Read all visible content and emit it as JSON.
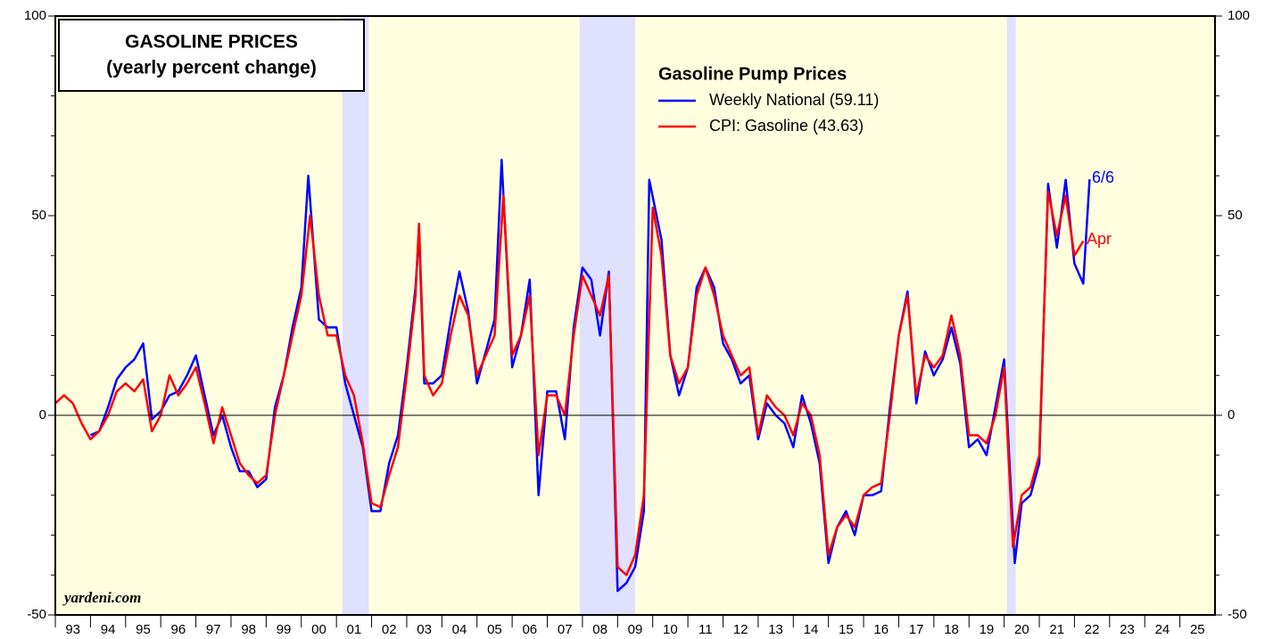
{
  "chart_data": {
    "type": "line",
    "title": [
      "GASOLINE PRICES",
      "(yearly percent change)"
    ],
    "legend_title": "Gasoline Pump Prices",
    "annotations": {
      "weekly_end": "6/6",
      "cpi_end": "Apr",
      "source": "yardeni.com"
    },
    "xlim": [
      1993,
      2026
    ],
    "xticks": [
      {
        "value": 1993,
        "label": "93"
      },
      {
        "value": 1994,
        "label": "94"
      },
      {
        "value": 1995,
        "label": "95"
      },
      {
        "value": 1996,
        "label": "96"
      },
      {
        "value": 1997,
        "label": "97"
      },
      {
        "value": 1998,
        "label": "98"
      },
      {
        "value": 1999,
        "label": "99"
      },
      {
        "value": 2000,
        "label": "00"
      },
      {
        "value": 2001,
        "label": "01"
      },
      {
        "value": 2002,
        "label": "02"
      },
      {
        "value": 2003,
        "label": "03"
      },
      {
        "value": 2004,
        "label": "04"
      },
      {
        "value": 2005,
        "label": "05"
      },
      {
        "value": 2006,
        "label": "06"
      },
      {
        "value": 2007,
        "label": "07"
      },
      {
        "value": 2008,
        "label": "08"
      },
      {
        "value": 2009,
        "label": "09"
      },
      {
        "value": 2010,
        "label": "10"
      },
      {
        "value": 2011,
        "label": "11"
      },
      {
        "value": 2012,
        "label": "12"
      },
      {
        "value": 2013,
        "label": "13"
      },
      {
        "value": 2014,
        "label": "14"
      },
      {
        "value": 2015,
        "label": "15"
      },
      {
        "value": 2016,
        "label": "16"
      },
      {
        "value": 2017,
        "label": "17"
      },
      {
        "value": 2018,
        "label": "18"
      },
      {
        "value": 2019,
        "label": "19"
      },
      {
        "value": 2020,
        "label": "20"
      },
      {
        "value": 2021,
        "label": "21"
      },
      {
        "value": 2022,
        "label": "22"
      },
      {
        "value": 2023,
        "label": "23"
      },
      {
        "value": 2024,
        "label": "24"
      },
      {
        "value": 2025,
        "label": "25"
      }
    ],
    "ylim": [
      -50,
      100
    ],
    "yticks": [
      -50,
      0,
      50,
      100
    ],
    "minor_yticks": [
      -40,
      -30,
      -20,
      -10,
      10,
      20,
      30,
      40,
      60,
      70,
      80,
      90
    ],
    "recessions": [
      [
        2001.17,
        2001.92
      ],
      [
        2007.92,
        2009.5
      ],
      [
        2020.08,
        2020.33
      ]
    ],
    "background": "#ffffe0",
    "recession_color": "#e0e0ff",
    "series": [
      {
        "name": "Weekly National (59.11)",
        "color": "#0000ff",
        "x": [
          1994.0,
          1994.25,
          1994.5,
          1994.75,
          1995.0,
          1995.25,
          1995.5,
          1995.75,
          1996.0,
          1996.25,
          1996.5,
          1996.75,
          1997.0,
          1997.25,
          1997.5,
          1997.75,
          1998.0,
          1998.25,
          1998.5,
          1998.75,
          1999.0,
          1999.25,
          1999.5,
          1999.75,
          2000.0,
          2000.2,
          2000.5,
          2000.75,
          2001.0,
          2001.25,
          2001.5,
          2001.75,
          2002.0,
          2002.25,
          2002.5,
          2002.75,
          2003.0,
          2003.25,
          2003.35,
          2003.5,
          2003.75,
          2004.0,
          2004.25,
          2004.5,
          2004.75,
          2005.0,
          2005.25,
          2005.5,
          2005.7,
          2006.0,
          2006.25,
          2006.5,
          2006.75,
          2007.0,
          2007.25,
          2007.5,
          2007.75,
          2008.0,
          2008.25,
          2008.5,
          2008.75,
          2009.0,
          2009.25,
          2009.5,
          2009.75,
          2009.9,
          2010.25,
          2010.5,
          2010.75,
          2011.0,
          2011.25,
          2011.5,
          2011.75,
          2012.0,
          2012.25,
          2012.5,
          2012.75,
          2013.0,
          2013.25,
          2013.5,
          2013.75,
          2014.0,
          2014.25,
          2014.5,
          2014.75,
          2015.0,
          2015.25,
          2015.5,
          2015.75,
          2016.0,
          2016.25,
          2016.5,
          2016.75,
          2017.0,
          2017.25,
          2017.5,
          2017.75,
          2018.0,
          2018.25,
          2018.5,
          2018.75,
          2019.0,
          2019.25,
          2019.5,
          2019.75,
          2020.0,
          2020.3,
          2020.5,
          2020.75,
          2021.0,
          2021.25,
          2021.5,
          2021.75,
          2022.0,
          2022.25,
          2022.43
        ],
        "values": [
          -5,
          -4,
          2,
          9,
          12,
          14,
          18,
          -1,
          1,
          5,
          6,
          10,
          15,
          5,
          -5,
          0,
          -8,
          -14,
          -14,
          -18,
          -16,
          2,
          10,
          22,
          32,
          60,
          24,
          22,
          22,
          8,
          0,
          -8,
          -24,
          -24,
          -12,
          -5,
          12,
          32,
          46,
          8,
          8,
          10,
          24,
          36,
          26,
          8,
          16,
          24,
          64,
          12,
          20,
          34,
          -20,
          6,
          6,
          -6,
          22,
          37,
          34,
          20,
          36,
          -44,
          -42,
          -38,
          -24,
          59,
          44,
          15,
          5,
          12,
          32,
          37,
          32,
          18,
          14,
          8,
          10,
          -6,
          3,
          0,
          -2,
          -8,
          5,
          -2,
          -12,
          -37,
          -28,
          -24,
          -30,
          -20,
          -20,
          -19,
          2,
          20,
          31,
          3,
          16,
          10,
          14,
          22,
          13,
          -8,
          -6,
          -10,
          2,
          14,
          -37,
          -22,
          -20,
          -12,
          58,
          42,
          59,
          38,
          33,
          59.11
        ]
      },
      {
        "name": "CPI: Gasoline (43.63)",
        "color": "#ff0000",
        "x": [
          1993.0,
          1993.25,
          1993.5,
          1993.75,
          1994.0,
          1994.25,
          1994.5,
          1994.75,
          1995.0,
          1995.25,
          1995.5,
          1995.75,
          1996.0,
          1996.25,
          1996.5,
          1996.75,
          1997.0,
          1997.25,
          1997.5,
          1997.75,
          1998.0,
          1998.25,
          1998.5,
          1998.75,
          1999.0,
          1999.25,
          1999.5,
          1999.75,
          2000.0,
          2000.25,
          2000.5,
          2000.75,
          2001.0,
          2001.25,
          2001.5,
          2001.75,
          2002.0,
          2002.25,
          2002.5,
          2002.75,
          2003.0,
          2003.25,
          2003.35,
          2003.5,
          2003.75,
          2004.0,
          2004.25,
          2004.5,
          2004.75,
          2005.0,
          2005.25,
          2005.5,
          2005.75,
          2006.0,
          2006.25,
          2006.5,
          2006.75,
          2007.0,
          2007.25,
          2007.5,
          2007.75,
          2008.0,
          2008.25,
          2008.5,
          2008.75,
          2009.0,
          2009.25,
          2009.5,
          2009.75,
          2010.0,
          2010.25,
          2010.5,
          2010.75,
          2011.0,
          2011.25,
          2011.5,
          2011.75,
          2012.0,
          2012.25,
          2012.5,
          2012.75,
          2013.0,
          2013.25,
          2013.5,
          2013.75,
          2014.0,
          2014.25,
          2014.5,
          2014.75,
          2015.0,
          2015.25,
          2015.5,
          2015.75,
          2016.0,
          2016.25,
          2016.5,
          2016.75,
          2017.0,
          2017.25,
          2017.5,
          2017.75,
          2018.0,
          2018.25,
          2018.5,
          2018.75,
          2019.0,
          2019.25,
          2019.5,
          2019.75,
          2020.0,
          2020.25,
          2020.5,
          2020.75,
          2021.0,
          2021.25,
          2021.5,
          2021.75,
          2022.0,
          2022.25
        ],
        "values": [
          3,
          5,
          3,
          -2,
          -6,
          -4,
          0,
          6,
          8,
          6,
          9,
          -4,
          0,
          10,
          5,
          8,
          12,
          3,
          -7,
          2,
          -5,
          -12,
          -15,
          -17,
          -15,
          0,
          10,
          20,
          30,
          50,
          30,
          20,
          20,
          10,
          5,
          -7,
          -22,
          -23,
          -15,
          -8,
          10,
          30,
          48,
          10,
          5,
          8,
          20,
          30,
          25,
          10,
          15,
          20,
          55,
          15,
          20,
          30,
          -10,
          5,
          5,
          0,
          20,
          35,
          30,
          25,
          35,
          -38,
          -40,
          -35,
          -20,
          52,
          40,
          15,
          8,
          12,
          30,
          37,
          30,
          20,
          15,
          10,
          12,
          -5,
          5,
          2,
          0,
          -5,
          3,
          0,
          -10,
          -35,
          -28,
          -25,
          -28,
          -20,
          -18,
          -17,
          0,
          20,
          30,
          5,
          15,
          12,
          15,
          25,
          15,
          -5,
          -5,
          -7,
          0,
          12,
          -33,
          -20,
          -18,
          -10,
          56,
          45,
          55,
          40,
          43.63
        ]
      }
    ]
  }
}
